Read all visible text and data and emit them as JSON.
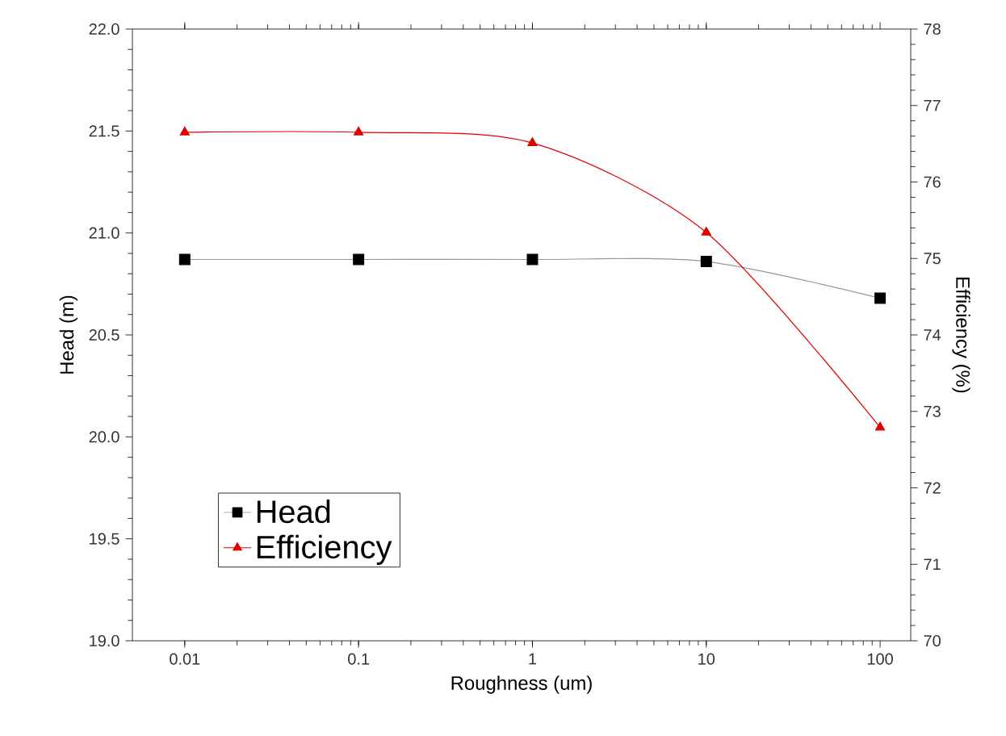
{
  "chart_data": {
    "type": "line",
    "xlabel": "Roughness (um)",
    "ylabel": "Head (m)",
    "y2label": "Efficiency (%)",
    "x": [
      0.01,
      0.1,
      1,
      10,
      100
    ],
    "log": "x",
    "xlim": [
      0.005,
      150
    ],
    "xticks": [
      0.01,
      0.1,
      1,
      10,
      100
    ],
    "ylim": [
      19,
      22
    ],
    "yticks": [
      {
        "value": 19,
        "label": "19.0"
      },
      {
        "value": 19.5,
        "label": "19.5"
      },
      {
        "value": 20,
        "label": "20.0"
      },
      {
        "value": 20.5,
        "label": "20.5"
      },
      {
        "value": 21,
        "label": "21.0"
      },
      {
        "value": 21.5,
        "label": "21.5"
      },
      {
        "value": 22,
        "label": "22.0"
      }
    ],
    "y2lim": [
      70,
      78
    ],
    "y2ticks": [
      70,
      71,
      72,
      73,
      74,
      75,
      76,
      77,
      78
    ],
    "legend": "bottom left",
    "grid": false,
    "series": [
      {
        "name": "Head",
        "color": "#000000",
        "marker": "square",
        "values": [
          20.87,
          20.87,
          20.87,
          20.86,
          20.68
        ]
      },
      {
        "name": "Efficiency",
        "color": "#e00000",
        "marker": "triangle",
        "axis": "y2",
        "values": [
          76.65,
          76.65,
          76.51,
          75.34,
          72.79
        ]
      }
    ]
  }
}
